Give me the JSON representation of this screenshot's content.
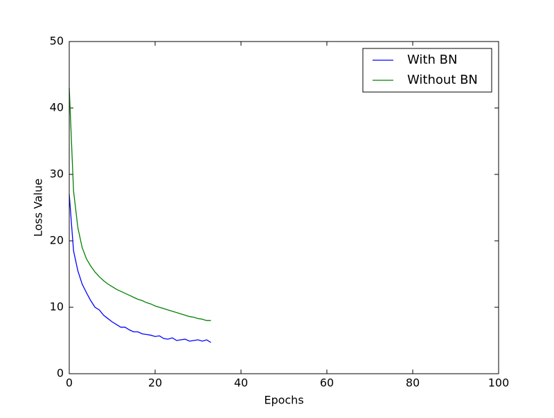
{
  "chart_data": {
    "type": "line",
    "xlabel": "Epochs",
    "ylabel": "Loss Value",
    "x": [
      0,
      1,
      2,
      3,
      4,
      5,
      6,
      7,
      8,
      9,
      10,
      11,
      12,
      13,
      14,
      15,
      16,
      17,
      18,
      19,
      20,
      21,
      22,
      23,
      24,
      25,
      26,
      27,
      28,
      29,
      30,
      31,
      32,
      33
    ],
    "series": [
      {
        "name": "With BN",
        "color": "#0000ff",
        "values": [
          27,
          18.5,
          15.5,
          13.5,
          12.2,
          11,
          10,
          9.6,
          8.8,
          8.3,
          7.8,
          7.4,
          7.0,
          7.0,
          6.6,
          6.3,
          6.3,
          6.0,
          5.9,
          5.8,
          5.6,
          5.7,
          5.3,
          5.2,
          5.4,
          5.0,
          5.1,
          5.2,
          4.9,
          5.0,
          5.1,
          4.9,
          5.1,
          4.7
        ]
      },
      {
        "name": "Without BN",
        "color": "#008000",
        "values": [
          43,
          27.5,
          22,
          19,
          17.3,
          16.2,
          15.3,
          14.6,
          14,
          13.5,
          13.1,
          12.7,
          12.4,
          12.1,
          11.8,
          11.5,
          11.2,
          11.0,
          10.7,
          10.5,
          10.2,
          10.0,
          9.8,
          9.6,
          9.4,
          9.2,
          9.0,
          8.8,
          8.6,
          8.5,
          8.3,
          8.2,
          8.0,
          8.0
        ]
      }
    ],
    "xlim": [
      0,
      100
    ],
    "xticks": [
      0,
      20,
      40,
      60,
      80,
      100
    ],
    "ylim": [
      0,
      50
    ],
    "yticks": [
      0,
      10,
      20,
      30,
      40,
      50
    ],
    "legend": "upper right"
  }
}
